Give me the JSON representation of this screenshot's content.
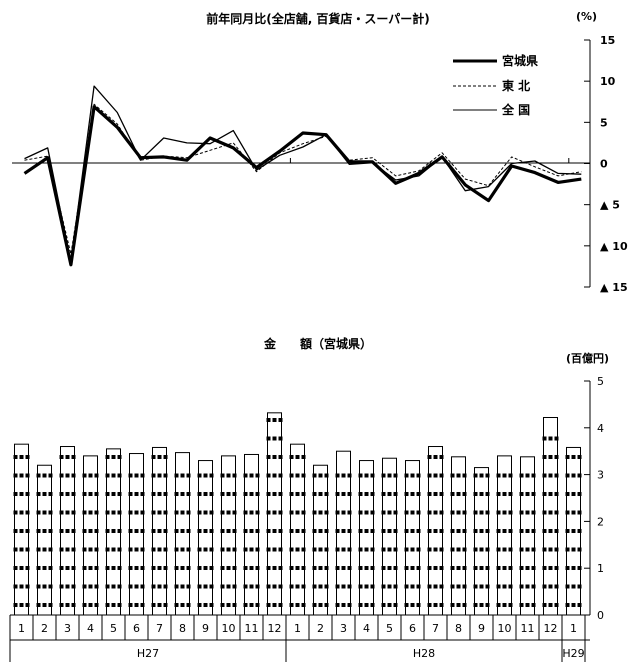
{
  "chart_data": [
    {
      "type": "line",
      "title": "前年同月比(全店舗, 百貨店・スーパー計)",
      "unit": "(%)",
      "ylim": [
        -15,
        15
      ],
      "yticks": [
        15,
        10,
        5,
        0,
        -5,
        -10,
        -15
      ],
      "ytick_labels": [
        "15",
        "10",
        "5",
        "0",
        "▲ 5",
        "▲ 10",
        "▲ 15"
      ],
      "x": [
        "1",
        "2",
        "3",
        "4",
        "5",
        "6",
        "7",
        "8",
        "9",
        "10",
        "11",
        "12",
        "1",
        "2",
        "3",
        "4",
        "5",
        "6",
        "7",
        "8",
        "9",
        "10",
        "11",
        "12",
        "1"
      ],
      "series": [
        {
          "name": "宮城県",
          "style": "thick",
          "values": [
            -1.2,
            0.7,
            -12.3,
            6.9,
            4.4,
            0.7,
            0.8,
            0.4,
            3.1,
            1.9,
            -0.5,
            1.5,
            3.7,
            3.5,
            0.2,
            0.2,
            -2.4,
            -1.2,
            0.8,
            -2.6,
            -4.5,
            -0.3,
            -1.1,
            -2.3,
            -1.9
          ]
        },
        {
          "name": "東 北",
          "style": "dashed",
          "values": [
            0.4,
            0.9,
            -11.0,
            7.2,
            4.8,
            0.4,
            0.9,
            0.7,
            1.6,
            2.5,
            -1.0,
            1.3,
            2.4,
            3.3,
            0.4,
            0.7,
            -1.5,
            -0.9,
            1.3,
            -1.9,
            -2.7,
            0.8,
            -0.4,
            -1.5,
            -1.0
          ]
        },
        {
          "name": "全 国",
          "style": "thin",
          "values": [
            0.6,
            1.9,
            -12.0,
            9.4,
            6.2,
            0.4,
            3.1,
            2.5,
            2.4,
            4.0,
            -0.8,
            1.0,
            2.0,
            3.5,
            -0.1,
            0.1,
            -2.0,
            -1.5,
            0.8,
            -3.3,
            -2.8,
            0.0,
            0.3,
            -1.2,
            -1.3
          ]
        }
      ]
    },
    {
      "type": "bar",
      "title": "金　　額（宮城県）",
      "unit": "(百億円)",
      "ylim": [
        0,
        5
      ],
      "yticks": [
        0,
        1,
        2,
        3,
        4,
        5
      ],
      "categories": [
        "1",
        "2",
        "3",
        "4",
        "5",
        "6",
        "7",
        "8",
        "9",
        "10",
        "11",
        "12",
        "1",
        "2",
        "3",
        "4",
        "5",
        "6",
        "7",
        "8",
        "9",
        "10",
        "11",
        "12",
        "1"
      ],
      "groups": [
        {
          "label": "H27",
          "count": 12
        },
        {
          "label": "H28",
          "count": 12
        },
        {
          "label": "H29",
          "count": 1
        }
      ],
      "values": [
        3.65,
        3.2,
        3.6,
        3.4,
        3.55,
        3.45,
        3.58,
        3.47,
        3.3,
        3.4,
        3.43,
        4.32,
        3.65,
        3.2,
        3.5,
        3.3,
        3.35,
        3.3,
        3.6,
        3.38,
        3.15,
        3.4,
        3.38,
        4.22,
        3.58
      ]
    }
  ]
}
